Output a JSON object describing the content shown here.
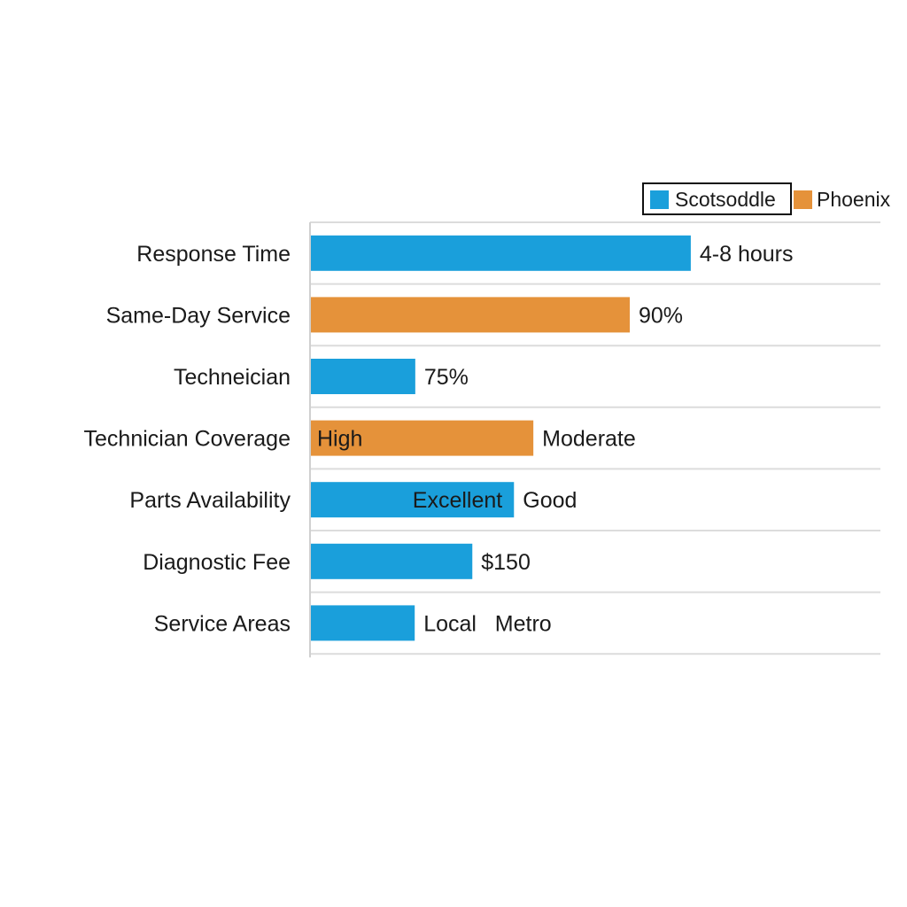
{
  "chart_data": {
    "type": "bar",
    "orientation": "horizontal",
    "title": "",
    "xlabel": "",
    "ylabel": "",
    "legend": {
      "position": "top-right",
      "entries": [
        {
          "name": "Scotsoddle",
          "color": "#1a9fdb"
        },
        {
          "name": "Phoenix",
          "color": "#e5923a"
        }
      ]
    },
    "grid": true,
    "bar_length_unit": "fraction of plot width (no printed scale)",
    "categories": [
      "Response Time",
      "Same-Day Service",
      "Techneician",
      "Technician Coverage",
      "Parts Availability",
      "Diagnostic Fee",
      "Service Areas"
    ],
    "bars": [
      {
        "category": "Response Time",
        "series": "Scotsoddle",
        "length": 0.666,
        "inside_label": "",
        "outside_label": "4-8 hours"
      },
      {
        "category": "Same-Day Service",
        "series": "Phoenix",
        "length": 0.559,
        "inside_label": "",
        "outside_label": "90%"
      },
      {
        "category": "Techneician",
        "series": "Scotsoddle",
        "length": 0.183,
        "inside_label": "",
        "outside_label": "75%"
      },
      {
        "category": "Technician Coverage",
        "series": "Phoenix",
        "length": 0.39,
        "inside_label": "High",
        "inside_align": "start",
        "outside_label": "Moderate"
      },
      {
        "category": "Parts Availability",
        "series": "Scotsoddle",
        "length": 0.356,
        "inside_label": "Excellent",
        "inside_align": "end",
        "outside_label": "Good"
      },
      {
        "category": "Diagnostic Fee",
        "series": "Scotsoddle",
        "length": 0.283,
        "inside_label": "",
        "outside_label": "$150"
      },
      {
        "category": "Service Areas",
        "series": "Scotsoddle",
        "length": 0.182,
        "inside_label": "",
        "outside_label": "Local   Metro"
      }
    ]
  }
}
